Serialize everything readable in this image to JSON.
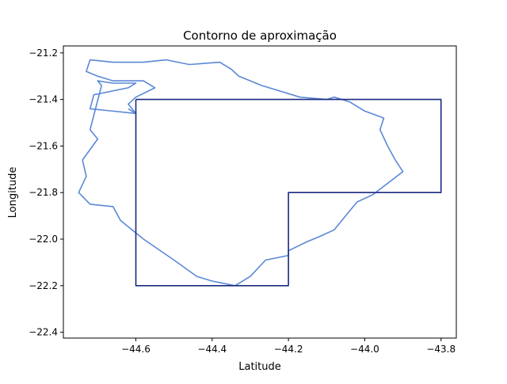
{
  "chart_data": {
    "type": "line",
    "title": "Contorno de aproximação",
    "xlabel": "Latitude",
    "ylabel": "Longitude",
    "xlim": [
      -44.79,
      -43.76
    ],
    "ylim": [
      -22.425,
      -21.17
    ],
    "xticks": [
      -44.6,
      -44.4,
      -44.2,
      -44.0,
      -43.8
    ],
    "xtick_labels": [
      "−44.6",
      "−44.4",
      "−44.2",
      "−44.0",
      "−43.8"
    ],
    "yticks": [
      -21.2,
      -21.4,
      -21.6,
      -21.8,
      -22.0,
      -22.2,
      -22.4
    ],
    "ytick_labels": [
      "−21.2",
      "−21.4",
      "−21.6",
      "−21.8",
      "−22.0",
      "−22.2",
      "−22.4"
    ],
    "grid": false,
    "series": [
      {
        "color": "#5a88d6",
        "x": [
          -44.6,
          -44.72,
          -44.71,
          -44.62,
          -44.6,
          -44.66,
          -44.7,
          -44.69,
          -44.72,
          -44.7,
          -44.74,
          -44.73,
          -44.75,
          -44.72,
          -44.66,
          -44.64,
          -44.58,
          -44.5,
          -44.44,
          -44.4,
          -44.34,
          -44.3,
          -44.26,
          -44.2,
          -44.2,
          -44.15,
          -44.12,
          -44.08,
          -44.05,
          -44.02,
          -43.98,
          -43.9,
          -43.92,
          -43.94,
          -43.96,
          -43.95,
          -44.0,
          -44.04,
          -44.08,
          -44.1,
          -44.17,
          -44.27,
          -44.33,
          -44.35,
          -44.38,
          -44.46,
          -44.52,
          -44.58,
          -44.66,
          -44.72,
          -44.73,
          -44.7,
          -44.66,
          -44.58,
          -44.55,
          -44.6,
          -44.62,
          -44.6,
          -44.62
        ],
        "y": [
          -21.46,
          -21.44,
          -21.38,
          -21.35,
          -21.33,
          -21.33,
          -21.32,
          -21.34,
          -21.53,
          -21.57,
          -21.66,
          -21.73,
          -21.8,
          -21.85,
          -21.86,
          -21.92,
          -22.0,
          -22.09,
          -22.16,
          -22.18,
          -22.2,
          -22.16,
          -22.09,
          -22.07,
          -22.05,
          -22.01,
          -21.99,
          -21.96,
          -21.9,
          -21.84,
          -21.81,
          -21.71,
          -21.66,
          -21.6,
          -21.53,
          -21.48,
          -21.45,
          -21.41,
          -21.39,
          -21.4,
          -21.39,
          -21.34,
          -21.3,
          -21.27,
          -21.24,
          -21.25,
          -21.23,
          -21.24,
          -21.24,
          -21.23,
          -21.28,
          -21.3,
          -21.32,
          -21.32,
          -21.35,
          -21.39,
          -21.42,
          -21.46,
          -21.44
        ]
      },
      {
        "color": "#1a2a80",
        "x": [
          -44.6,
          -43.8,
          -43.8,
          -44.2,
          -44.2,
          -44.6,
          -44.6
        ],
        "y": [
          -21.4,
          -21.4,
          -21.8,
          -21.8,
          -22.2,
          -22.2,
          -21.4
        ]
      }
    ]
  }
}
